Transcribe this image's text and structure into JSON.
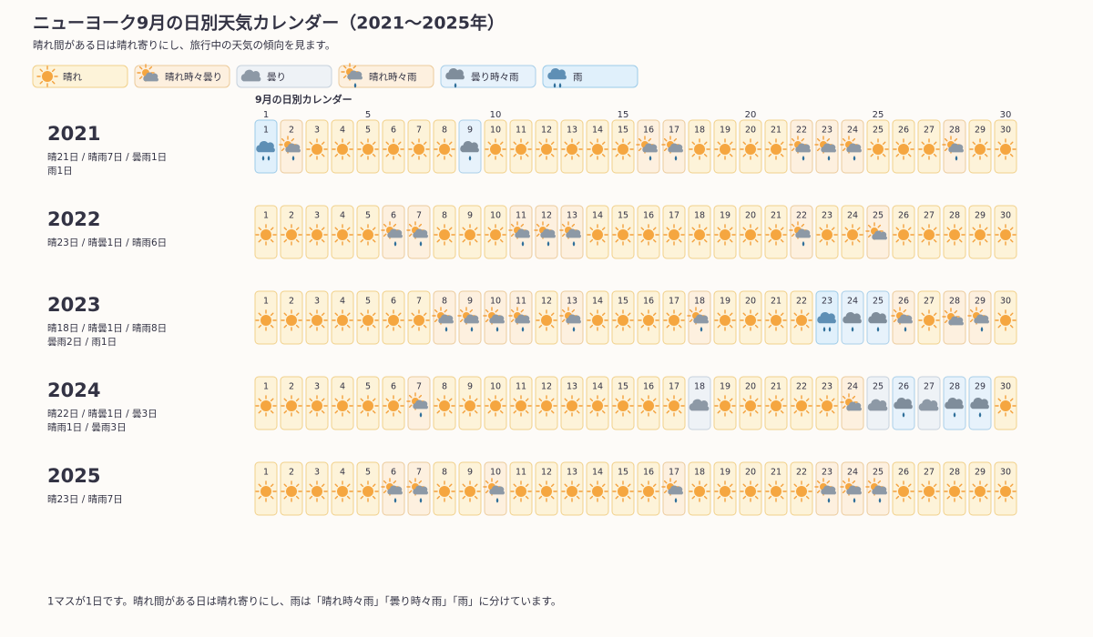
{
  "header": {
    "title": "ニューヨーク9月の日別天気カレンダー（2021〜2025年）",
    "subtitle": "晴れ間がある日は晴れ寄りにし、旅行中の天気の傾向を見ます。"
  },
  "legend": [
    {
      "label": "晴れ",
      "bg": "#fdf3d9",
      "border": "#f1d08a"
    },
    {
      "label": "晴れ時々曇り",
      "bg": "#fdf0df",
      "border": "#eccb9c"
    },
    {
      "label": "曇り",
      "bg": "#eef2f6",
      "border": "#c7d2dd"
    },
    {
      "label": "晴れ時々雨",
      "bg": "#fdf0df",
      "border": "#eccb9c"
    },
    {
      "label": "曇り時々雨",
      "bg": "#e7f2fb",
      "border": "#a9cfe9"
    },
    {
      "label": "雨",
      "bg": "#e0f0fb",
      "border": "#9ccbe8"
    }
  ],
  "calendar_label": "9月の日別カレンダー",
  "header_ticks": [
    1,
    5,
    10,
    15,
    20,
    25,
    30
  ],
  "days": [
    1,
    2,
    3,
    4,
    5,
    6,
    7,
    8,
    9,
    10,
    11,
    12,
    13,
    14,
    15,
    16,
    17,
    18,
    19,
    20,
    21,
    22,
    23,
    24,
    25,
    26,
    27,
    28,
    29,
    30
  ],
  "years": [
    {
      "year": "2021",
      "summary": [
        "晴21日 / 晴雨7日 / 曇雨1日",
        "雨1日"
      ],
      "weather": [
        "雨",
        "晴れ時々雨",
        "晴れ",
        "晴れ",
        "晴れ",
        "晴れ",
        "晴れ",
        "晴れ",
        "曇り時々雨",
        "晴れ",
        "晴れ",
        "晴れ",
        "晴れ",
        "晴れ",
        "晴れ",
        "晴れ時々雨",
        "晴れ時々雨",
        "晴れ",
        "晴れ",
        "晴れ",
        "晴れ",
        "晴れ時々雨",
        "晴れ時々雨",
        "晴れ時々雨",
        "晴れ",
        "晴れ",
        "晴れ",
        "晴れ時々雨",
        "晴れ",
        "晴れ"
      ]
    },
    {
      "year": "2022",
      "summary": [
        "晴23日 / 晴曇1日 / 晴雨6日"
      ],
      "weather": [
        "晴れ",
        "晴れ",
        "晴れ",
        "晴れ",
        "晴れ",
        "晴れ時々雨",
        "晴れ時々雨",
        "晴れ",
        "晴れ",
        "晴れ",
        "晴れ時々雨",
        "晴れ時々雨",
        "晴れ時々雨",
        "晴れ",
        "晴れ",
        "晴れ",
        "晴れ",
        "晴れ",
        "晴れ",
        "晴れ",
        "晴れ",
        "晴れ時々雨",
        "晴れ",
        "晴れ",
        "晴れ時々曇り",
        "晴れ",
        "晴れ",
        "晴れ",
        "晴れ",
        "晴れ"
      ]
    },
    {
      "year": "2023",
      "summary": [
        "晴18日 / 晴曇1日 / 晴雨8日",
        "曇雨2日 / 雨1日"
      ],
      "weather": [
        "晴れ",
        "晴れ",
        "晴れ",
        "晴れ",
        "晴れ",
        "晴れ",
        "晴れ",
        "晴れ時々雨",
        "晴れ時々雨",
        "晴れ時々雨",
        "晴れ時々雨",
        "晴れ",
        "晴れ時々雨",
        "晴れ",
        "晴れ",
        "晴れ",
        "晴れ",
        "晴れ時々雨",
        "晴れ",
        "晴れ",
        "晴れ",
        "晴れ",
        "雨",
        "曇り時々雨",
        "曇り時々雨",
        "晴れ時々雨",
        "晴れ",
        "晴れ時々曇り",
        "晴れ時々雨",
        "晴れ"
      ]
    },
    {
      "year": "2024",
      "summary": [
        "晴22日 / 晴曇1日 / 曇3日",
        "晴雨1日 / 曇雨3日"
      ],
      "weather": [
        "晴れ",
        "晴れ",
        "晴れ",
        "晴れ",
        "晴れ",
        "晴れ",
        "晴れ時々雨",
        "晴れ",
        "晴れ",
        "晴れ",
        "晴れ",
        "晴れ",
        "晴れ",
        "晴れ",
        "晴れ",
        "晴れ",
        "晴れ",
        "曇り",
        "晴れ",
        "晴れ",
        "晴れ",
        "晴れ",
        "晴れ",
        "晴れ時々曇り",
        "曇り",
        "曇り時々雨",
        "曇り",
        "曇り時々雨",
        "曇り時々雨",
        "晴れ"
      ]
    },
    {
      "year": "2025",
      "summary": [
        "晴23日 / 晴雨7日"
      ],
      "weather": [
        "晴れ",
        "晴れ",
        "晴れ",
        "晴れ",
        "晴れ",
        "晴れ時々雨",
        "晴れ時々雨",
        "晴れ",
        "晴れ",
        "晴れ時々雨",
        "晴れ",
        "晴れ",
        "晴れ",
        "晴れ",
        "晴れ",
        "晴れ",
        "晴れ時々雨",
        "晴れ",
        "晴れ",
        "晴れ",
        "晴れ",
        "晴れ",
        "晴れ時々雨",
        "晴れ時々雨",
        "晴れ時々雨",
        "晴れ",
        "晴れ",
        "晴れ",
        "晴れ",
        "晴れ"
      ]
    }
  ],
  "footer": "1マスが1日です。晴れ間がある日は晴れ寄りにし、雨は「晴れ時々雨」「曇り時々雨」「雨」に分けています。"
}
